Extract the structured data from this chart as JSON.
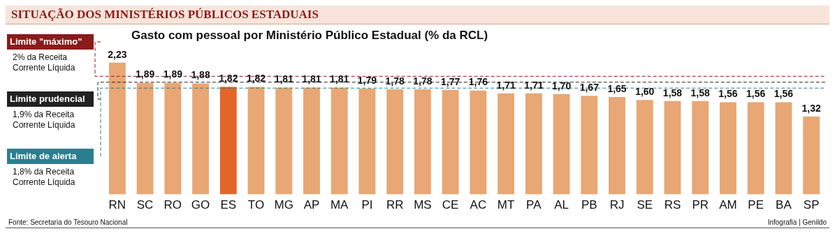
{
  "chart_data": {
    "type": "bar",
    "title": "SITUAÇÃO DOS MINISTÉRIOS PÚBLICOS ESTADUAIS",
    "subtitle": "Gasto com pessoal por Ministério Público Estadual (% da RCL)",
    "categories": [
      "RN",
      "SC",
      "RO",
      "GO",
      "ES",
      "TO",
      "MG",
      "AP",
      "MA",
      "PI",
      "RR",
      "MS",
      "CE",
      "AC",
      "MT",
      "PA",
      "AL",
      "PB",
      "RJ",
      "SE",
      "RS",
      "PR",
      "AM",
      "PE",
      "BA",
      "SP"
    ],
    "values": [
      2.23,
      1.89,
      1.89,
      1.88,
      1.82,
      1.82,
      1.81,
      1.81,
      1.81,
      1.79,
      1.78,
      1.78,
      1.77,
      1.76,
      1.71,
      1.71,
      1.7,
      1.67,
      1.65,
      1.6,
      1.58,
      1.58,
      1.56,
      1.56,
      1.56,
      1.32
    ],
    "value_labels": [
      "2,23",
      "1,89",
      "1,89",
      "1,88",
      "1,82",
      "1,82",
      "1,81",
      "1,81",
      "1,81",
      "1,79",
      "1,78",
      "1,78",
      "1,77",
      "1,76",
      "1,71",
      "1,71",
      "1,70",
      "1,67",
      "1,65",
      "1,60",
      "1,58",
      "1,58",
      "1,56",
      "1,56",
      "1,56",
      "1,32"
    ],
    "colors": [
      "#e8a774",
      "#e8a774",
      "#e8a774",
      "#e8a774",
      "#e2652a",
      "#e8a774",
      "#e8a774",
      "#e8a774",
      "#e8a774",
      "#e8a774",
      "#e8a774",
      "#e8a774",
      "#e8a774",
      "#e8a774",
      "#e8a774",
      "#e8a774",
      "#e8a774",
      "#e8a774",
      "#e8a774",
      "#e8a774",
      "#e8a774",
      "#e8a774",
      "#e8a774",
      "#e8a774",
      "#e8a774",
      "#e8a774"
    ],
    "tick_labels": "x",
    "grid": false,
    "legend": false,
    "ref_lines": [
      {
        "axis": "y",
        "value": 2,
        "label": "Limite \"máximo\"",
        "color": "#8b1a1a",
        "line_style": "dashed"
      },
      {
        "axis": "y",
        "value": 1.9,
        "label": "Limite prudencial",
        "color": "#222222",
        "line_style": "dashed"
      },
      {
        "axis": "y",
        "value": 1.8,
        "label": "Limite de alerta",
        "color": "#2a7f8f",
        "line_style": "dashed"
      }
    ],
    "annotations": [
      "2% da Receita Corrente Líquida",
      "1,9% da Receita Corrente Líquida",
      "1,8% da Receita Corrente Líquida",
      "Fonte: Secretaria do Tesouro Nacional",
      "Infografia | Genildo"
    ]
  }
}
